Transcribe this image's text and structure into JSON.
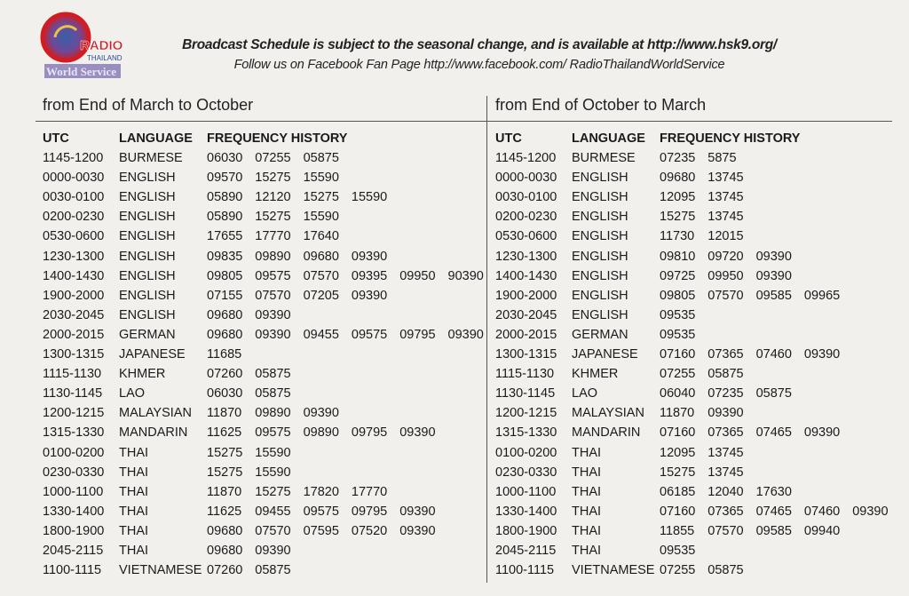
{
  "logo": {
    "text_top": "RADIO",
    "text_mid": "THAILAND",
    "text_bottom": "World Service"
  },
  "header": {
    "line1": "Broadcast Schedule is subject to the seasonal change, and is available at http://www.hsk9.org/",
    "line2": "Follow us on Facebook Fan Page  http://www.facebook.com/ RadioThailandWorldService"
  },
  "columns": [
    "UTC",
    "LANGUAGE",
    "FREQUENCY HISTORY"
  ],
  "schedules": [
    {
      "title": "from End of March to October",
      "rows": [
        {
          "utc": "1145-1200",
          "lang": "BURMESE",
          "freqs": [
            "06030",
            "07255",
            "05875"
          ]
        },
        {
          "utc": "0000-0030",
          "lang": "ENGLISH",
          "freqs": [
            "09570",
            "15275",
            "15590"
          ]
        },
        {
          "utc": "0030-0100",
          "lang": "ENGLISH",
          "freqs": [
            "05890",
            "12120",
            "15275",
            "15590"
          ]
        },
        {
          "utc": "0200-0230",
          "lang": "ENGLISH",
          "freqs": [
            "05890",
            "15275",
            "15590"
          ]
        },
        {
          "utc": "0530-0600",
          "lang": "ENGLISH",
          "freqs": [
            "17655",
            "17770",
            "17640"
          ]
        },
        {
          "utc": "1230-1300",
          "lang": "ENGLISH",
          "freqs": [
            "09835",
            "09890",
            "09680",
            "09390"
          ]
        },
        {
          "utc": "1400-1430",
          "lang": "ENGLISH",
          "freqs": [
            "09805",
            "09575",
            "07570",
            "09395",
            "09950",
            "90390"
          ]
        },
        {
          "utc": "1900-2000",
          "lang": "ENGLISH",
          "freqs": [
            "07155",
            "07570",
            "07205",
            "09390"
          ]
        },
        {
          "utc": "2030-2045",
          "lang": "ENGLISH",
          "freqs": [
            "09680",
            "09390"
          ]
        },
        {
          "utc": "2000-2015",
          "lang": "GERMAN",
          "freqs": [
            "09680",
            "09390",
            "09455",
            "09575",
            "09795",
            "09390"
          ]
        },
        {
          "utc": "1300-1315",
          "lang": "JAPANESE",
          "freqs": [
            "11685"
          ]
        },
        {
          "utc": "1115-1130",
          "lang": "KHMER",
          "freqs": [
            "07260",
            "05875"
          ]
        },
        {
          "utc": "1130-1145",
          "lang": "LAO",
          "freqs": [
            "06030",
            "05875"
          ]
        },
        {
          "utc": "1200-1215",
          "lang": "MALAYSIAN",
          "freqs": [
            "11870",
            "09890",
            "09390"
          ]
        },
        {
          "utc": "1315-1330",
          "lang": "MANDARIN",
          "freqs": [
            "11625",
            "09575",
            "09890",
            "09795",
            "09390"
          ]
        },
        {
          "utc": "0100-0200",
          "lang": "THAI",
          "freqs": [
            "15275",
            "15590"
          ]
        },
        {
          "utc": "0230-0330",
          "lang": "THAI",
          "freqs": [
            "15275",
            "15590"
          ]
        },
        {
          "utc": "1000-1100",
          "lang": "THAI",
          "freqs": [
            "11870",
            "15275",
            "17820",
            "17770"
          ]
        },
        {
          "utc": "1330-1400",
          "lang": "THAI",
          "freqs": [
            "11625",
            "09455",
            "09575",
            "09795",
            "09390"
          ]
        },
        {
          "utc": "1800-1900",
          "lang": "THAI",
          "freqs": [
            "09680",
            "07570",
            "07595",
            "07520",
            "09390"
          ]
        },
        {
          "utc": "2045-2115",
          "lang": "THAI",
          "freqs": [
            "09680",
            "09390"
          ]
        },
        {
          "utc": "1100-1115",
          "lang": "VIETNAMESE",
          "freqs": [
            "07260",
            "05875"
          ]
        }
      ]
    },
    {
      "title": "from End of October to March",
      "rows": [
        {
          "utc": "1145-1200",
          "lang": "BURMESE",
          "freqs": [
            "07235",
            "5875"
          ]
        },
        {
          "utc": "0000-0030",
          "lang": "ENGLISH",
          "freqs": [
            "09680",
            "13745"
          ]
        },
        {
          "utc": "0030-0100",
          "lang": "ENGLISH",
          "freqs": [
            "12095",
            "13745"
          ]
        },
        {
          "utc": "0200-0230",
          "lang": "ENGLISH",
          "freqs": [
            "15275",
            "13745"
          ]
        },
        {
          "utc": "0530-0600",
          "lang": "ENGLISH",
          "freqs": [
            "11730",
            "12015"
          ]
        },
        {
          "utc": "1230-1300",
          "lang": "ENGLISH",
          "freqs": [
            "09810",
            "09720",
            "09390"
          ]
        },
        {
          "utc": "1400-1430",
          "lang": "ENGLISH",
          "freqs": [
            "09725",
            "09950",
            "09390"
          ]
        },
        {
          "utc": "1900-2000",
          "lang": "ENGLISH",
          "freqs": [
            "09805",
            "07570",
            "09585",
            "09965"
          ]
        },
        {
          "utc": "2030-2045",
          "lang": "ENGLISH",
          "freqs": [
            "09535"
          ]
        },
        {
          "utc": "2000-2015",
          "lang": "GERMAN",
          "freqs": [
            "09535"
          ]
        },
        {
          "utc": "1300-1315",
          "lang": "JAPANESE",
          "freqs": [
            "07160",
            "07365",
            "07460",
            "09390"
          ]
        },
        {
          "utc": "1115-1130",
          "lang": "KHMER",
          "freqs": [
            "07255",
            "05875"
          ]
        },
        {
          "utc": "1130-1145",
          "lang": "LAO",
          "freqs": [
            "06040",
            "07235",
            "05875"
          ]
        },
        {
          "utc": "1200-1215",
          "lang": "MALAYSIAN",
          "freqs": [
            "11870",
            "09390"
          ]
        },
        {
          "utc": "1315-1330",
          "lang": "MANDARIN",
          "freqs": [
            "07160",
            "07365",
            "07465",
            "09390"
          ]
        },
        {
          "utc": "0100-0200",
          "lang": "THAI",
          "freqs": [
            "12095",
            "13745"
          ]
        },
        {
          "utc": "0230-0330",
          "lang": "THAI",
          "freqs": [
            "15275",
            "13745"
          ]
        },
        {
          "utc": "1000-1100",
          "lang": "THAI",
          "freqs": [
            "06185",
            "12040",
            "17630"
          ]
        },
        {
          "utc": "1330-1400",
          "lang": "THAI",
          "freqs": [
            "07160",
            "07365",
            "07465",
            "07460",
            "09390"
          ]
        },
        {
          "utc": "1800-1900",
          "lang": "THAI",
          "freqs": [
            "11855",
            "07570",
            "09585",
            "09940"
          ]
        },
        {
          "utc": "2045-2115",
          "lang": "THAI",
          "freqs": [
            "09535"
          ]
        },
        {
          "utc": "1100-1115",
          "lang": "VIETNAMESE",
          "freqs": [
            "07255",
            "05875"
          ]
        }
      ]
    }
  ]
}
